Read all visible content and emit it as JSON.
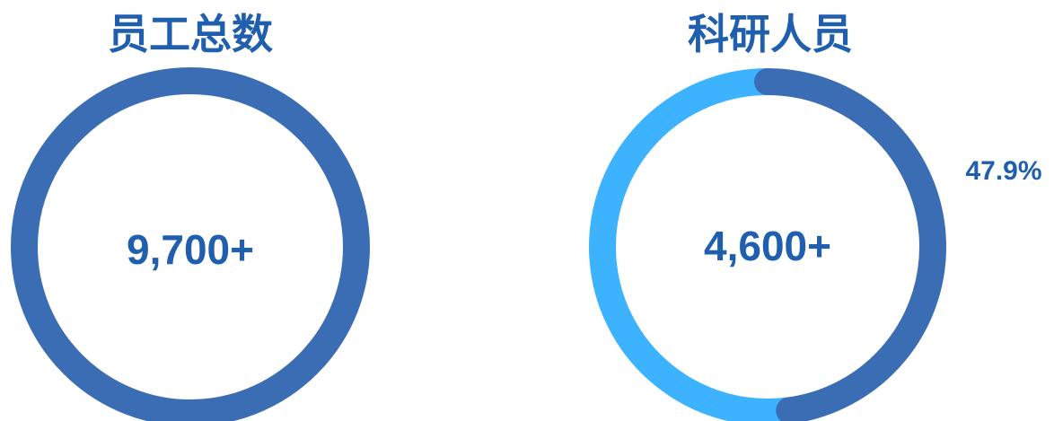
{
  "chart_data": [
    {
      "type": "pie",
      "title": "员工总数",
      "center_label": "9,700+",
      "value": 9700,
      "slices": [
        {
          "value": 9700,
          "color": "#3b6db4"
        }
      ]
    },
    {
      "type": "pie",
      "title": "科研人员",
      "center_label": "4,600+",
      "value": 4600,
      "percent_label": "47.9%",
      "slices": [
        {
          "value": 47.9,
          "color": "#3b6db4"
        },
        {
          "value": 52.1,
          "color": "#3db3ff"
        }
      ]
    }
  ]
}
